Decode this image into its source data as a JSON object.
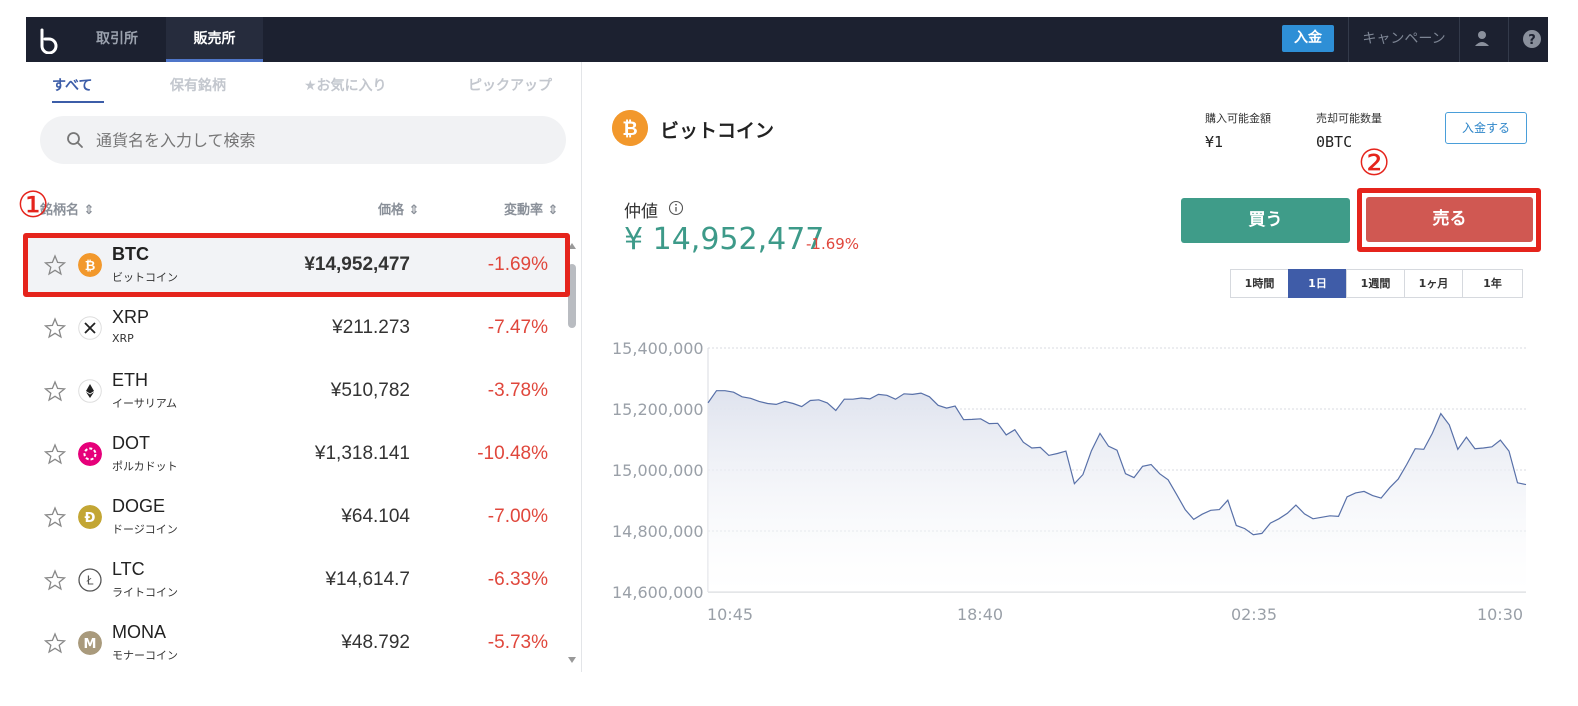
{
  "topbar": {
    "tab_exchange": "取引所",
    "tab_sales": "販売所",
    "deposit": "入金",
    "campaign": "キャンペーン"
  },
  "filters": [
    "すべて",
    "保有銘柄",
    "★お気に入り",
    "ピックアップ"
  ],
  "search": {
    "placeholder": "通貨名を入力して検索"
  },
  "columns": {
    "name": "銘柄名 ⇕",
    "price": "価格 ⇕",
    "change": "変動率 ⇕"
  },
  "coins": [
    {
      "symbol": "BTC",
      "name": "ビットコイン",
      "price": "¥14,952,477",
      "change": "-1.69%",
      "icon": "bitcoin-icon",
      "color": "#f2982c"
    },
    {
      "symbol": "XRP",
      "name": "XRP",
      "price": "¥211.273",
      "change": "-7.47%",
      "icon": "xrp-icon",
      "color": "#ffffff"
    },
    {
      "symbol": "ETH",
      "name": "イーサリアム",
      "price": "¥510,782",
      "change": "-3.78%",
      "icon": "ethereum-icon",
      "color": "#ffffff"
    },
    {
      "symbol": "DOT",
      "name": "ポルカドット",
      "price": "¥1,318.141",
      "change": "-10.48%",
      "icon": "polkadot-icon",
      "color": "#e6007a"
    },
    {
      "symbol": "DOGE",
      "name": "ドージコイン",
      "price": "¥64.104",
      "change": "-7.00%",
      "icon": "dogecoin-icon",
      "color": "#c3a634"
    },
    {
      "symbol": "LTC",
      "name": "ライトコイン",
      "price": "¥14,614.7",
      "change": "-6.33%",
      "icon": "litecoin-icon",
      "color": "#ffffff"
    },
    {
      "symbol": "MONA",
      "name": "モナーコイン",
      "price": "¥48.792",
      "change": "-5.73%",
      "icon": "monacoin-icon",
      "color": "#a99a7c"
    }
  ],
  "detail": {
    "title": "ビットコイン",
    "buyable_label": "購入可能金額",
    "buyable_value": "¥1",
    "sellable_label": "売却可能数量",
    "sellable_value": "0BTC",
    "deposit_button": "入金する",
    "mid_label": "仲値",
    "mid_price": "¥ 14,952,477",
    "mid_change": "-1.69%",
    "buy": "買う",
    "sell": "売る",
    "periods": [
      "1時間",
      "1日",
      "1週間",
      "1ヶ月",
      "1年"
    ],
    "active_period": "1日"
  },
  "annotations": {
    "one": "①",
    "two": "②"
  },
  "colors": {
    "buy": "#3f9c89",
    "sell": "#d05852",
    "negative": "#e0473c",
    "accent": "#3f5ca8",
    "highlight": "#e5241c"
  },
  "chart_data": {
    "type": "area",
    "x_ticks": [
      "10:45",
      "18:40",
      "02:35",
      "10:30"
    ],
    "y_ticks": [
      "15,400,000",
      "15,200,000",
      "15,000,000",
      "14,800,000",
      "14,600,000"
    ],
    "ylim": [
      14600000,
      15400000
    ],
    "grid": true,
    "values": [
      15220000,
      15260000,
      15260000,
      15255000,
      15240000,
      15235000,
      15225000,
      15218000,
      15215000,
      15225000,
      15218000,
      15208000,
      15228000,
      15230000,
      15220000,
      15195000,
      15232000,
      15232000,
      15236000,
      15233000,
      15248000,
      15245000,
      15232000,
      15250000,
      15248000,
      15252000,
      15240000,
      15212000,
      15203000,
      15210000,
      15165000,
      15166000,
      15168000,
      15152000,
      15153000,
      15115000,
      15132000,
      15091000,
      15072000,
      15074000,
      15048000,
      15054000,
      15062000,
      14955000,
      14985000,
      15063000,
      15120000,
      15078000,
      15065000,
      14988000,
      14975000,
      15012000,
      15018000,
      14988000,
      14968000,
      14920000,
      14870000,
      14838000,
      14855000,
      14868000,
      14870000,
      14901000,
      14818000,
      14808000,
      14788000,
      14792000,
      14826000,
      14840000,
      14858000,
      14885000,
      14856000,
      14840000,
      14845000,
      14850000,
      14848000,
      14912000,
      14925000,
      14930000,
      14916000,
      14908000,
      14942000,
      14970000,
      15018000,
      15070000,
      15068000,
      15120000,
      15185000,
      15148000,
      15068000,
      15108000,
      15070000,
      15072000,
      15076000,
      15098000,
      15062000,
      14958000,
      14952000
    ]
  }
}
